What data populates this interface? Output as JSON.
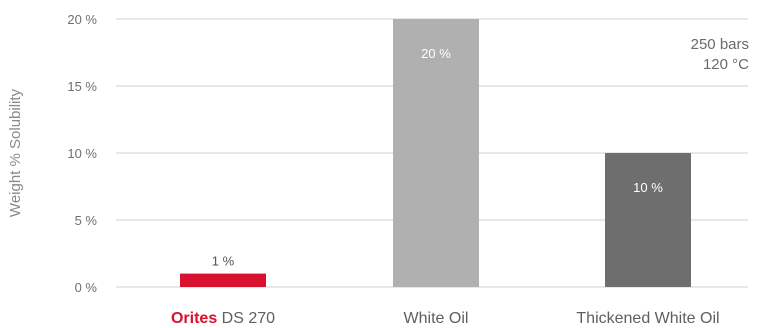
{
  "chart_data": {
    "type": "bar",
    "categories": [
      {
        "brand": "Orites",
        "label": "DS 270"
      },
      {
        "brand": "",
        "label": "White Oil"
      },
      {
        "brand": "",
        "label": "Thickened White Oil"
      }
    ],
    "values": [
      1,
      20,
      10
    ],
    "data_labels": [
      "1 %",
      "20 %",
      "10 %"
    ],
    "bar_colors": [
      "#d8112f",
      "#b0b0b0",
      "#6e6e6e"
    ],
    "brand_color": "#d8112f",
    "ylabel": "Weight % Solubility",
    "ylim": [
      0,
      20
    ],
    "yticks": [
      0,
      5,
      10,
      15,
      20
    ],
    "ytick_labels": [
      "0 %",
      "5 %",
      "10 %",
      "15 %",
      "20 %"
    ],
    "grid": true,
    "annotation": [
      "250 bars",
      "120 °C"
    ],
    "annotation_position": "top-right"
  }
}
